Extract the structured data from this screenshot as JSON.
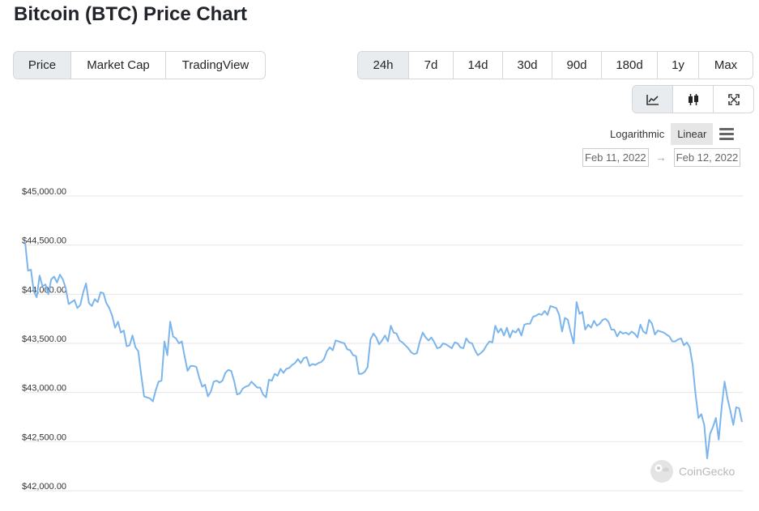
{
  "title": "Bitcoin (BTC) Price Chart",
  "view_tabs": [
    "Price",
    "Market Cap",
    "TradingView"
  ],
  "range_tabs": [
    "24h",
    "7d",
    "14d",
    "30d",
    "90d",
    "180d",
    "1y",
    "Max"
  ],
  "icon_buttons": [
    "line-chart-icon",
    "candlestick-icon",
    "expand-icon"
  ],
  "scale": {
    "log_label": "Logarithmic",
    "linear_label": "Linear",
    "selected": "Linear"
  },
  "date_range": {
    "from": "Feb 11, 2022",
    "arrow": "→",
    "to": "Feb 12, 2022"
  },
  "watermark": "CoinGecko",
  "colors": {
    "line": "#7cb5ec",
    "active_tab": "#e9ecef",
    "grid": "#e6e6e6"
  },
  "chart_data": {
    "type": "line",
    "title": "",
    "xlabel": "",
    "ylabel": "",
    "ylim": [
      42000,
      45000
    ],
    "y_ticks": [
      "$42,000.00",
      "$42,500.00",
      "$43,000.00",
      "$43,500.00",
      "$44,000.00",
      "$44,500.00",
      "$45,000.00"
    ],
    "y_tick_values": [
      42000,
      42500,
      43000,
      43500,
      44000,
      44500,
      45000
    ],
    "grid": true,
    "series": [
      {
        "values": [
          44530,
          44240,
          44250,
          44030,
          43970,
          44190,
          44080,
          44100,
          44000,
          44150,
          44180,
          44120,
          44200,
          44150,
          44060,
          43900,
          43920,
          43940,
          43860,
          43890,
          44020,
          44110,
          43910,
          43880,
          43950,
          43920,
          44020,
          44010,
          43910,
          43860,
          43780,
          43660,
          43720,
          43610,
          43630,
          43470,
          43480,
          43580,
          43460,
          43420,
          43180,
          42960,
          42950,
          42940,
          42910,
          43020,
          43110,
          43120,
          43520,
          43380,
          43720,
          43570,
          43550,
          43500,
          43520,
          43360,
          43220,
          43270,
          43270,
          43260,
          43150,
          43060,
          43080,
          42960,
          43010,
          43110,
          43120,
          43100,
          43120,
          43200,
          43230,
          43220,
          43120,
          42980,
          42990,
          43040,
          43060,
          43070,
          43110,
          43080,
          43050,
          43050,
          42980,
          42950,
          43130,
          43120,
          43190,
          43170,
          43240,
          43200,
          43240,
          43250,
          43280,
          43300,
          43340,
          43300,
          43350,
          43360,
          43270,
          43290,
          43280,
          43300,
          43310,
          43340,
          43420,
          43460,
          43430,
          43530,
          43520,
          43510,
          43500,
          43440,
          43430,
          43380,
          43370,
          43190,
          43190,
          43210,
          43260,
          43540,
          43600,
          43560,
          43490,
          43530,
          43580,
          43520,
          43680,
          43610,
          43600,
          43530,
          43510,
          43480,
          43450,
          43410,
          43390,
          43400,
          43520,
          43610,
          43560,
          43530,
          43560,
          43510,
          43450,
          43460,
          43500,
          43490,
          43470,
          43450,
          43510,
          43500,
          43460,
          43450,
          43550,
          43510,
          43500,
          43430,
          43380,
          43400,
          43430,
          43480,
          43520,
          43510,
          43680,
          43610,
          43650,
          43580,
          43660,
          43560,
          43630,
          43610,
          43650,
          43580,
          43690,
          43700,
          43700,
          43770,
          43780,
          43800,
          43790,
          43830,
          43790,
          43880,
          43870,
          43860,
          43790,
          43620,
          43760,
          43740,
          43610,
          43500,
          43920,
          43800,
          43820,
          43640,
          43690,
          43660,
          43730,
          43680,
          43700,
          43740,
          43750,
          43720,
          43640,
          43640,
          43570,
          43620,
          43600,
          43610,
          43590,
          43620,
          43600,
          43560,
          43690,
          43620,
          43600,
          43740,
          43700,
          43590,
          43630,
          43620,
          43610,
          43590,
          43570,
          43520,
          43520,
          43540,
          43550,
          43480,
          43510,
          43460,
          43280,
          42980,
          42740,
          42780,
          42670,
          42330,
          42580,
          42650,
          42740,
          42520,
          42850,
          43110,
          42940,
          42810,
          42670,
          42850,
          42840,
          42700
        ],
        "min_value": 42330,
        "max_value": 44530
      }
    ]
  }
}
